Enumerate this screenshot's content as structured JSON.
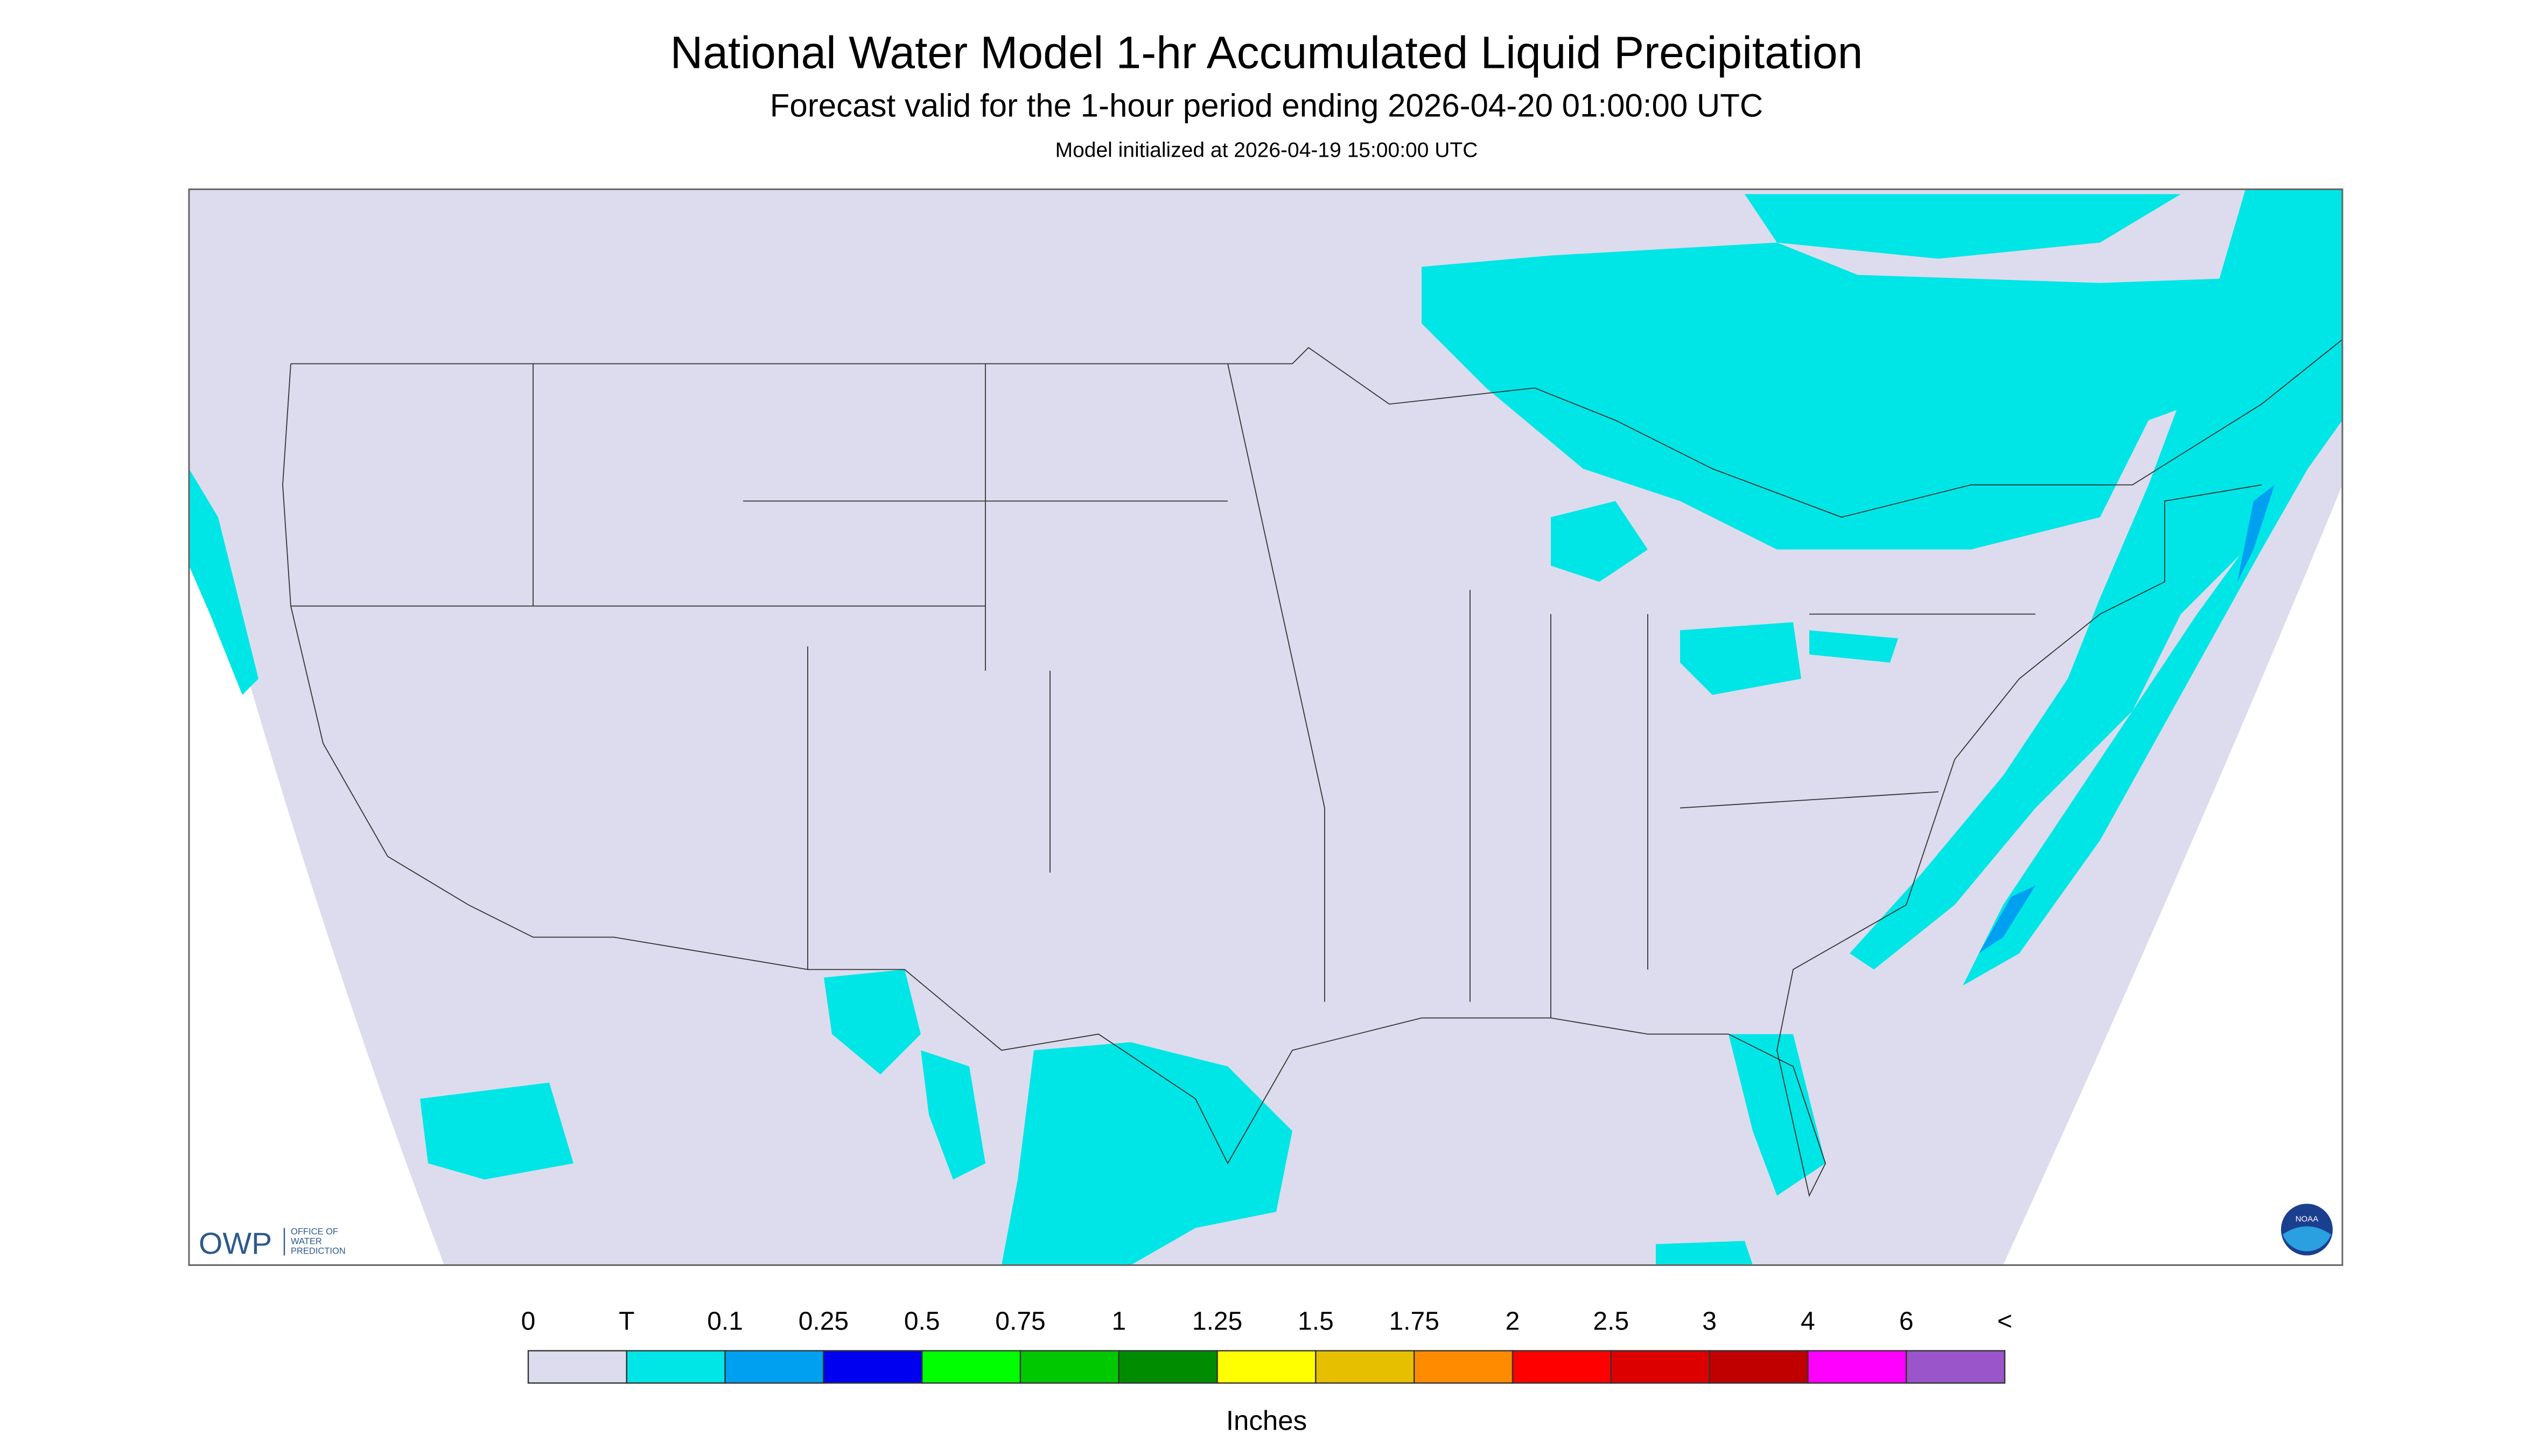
{
  "header": {
    "title": "National Water Model 1-hr Accumulated Liquid Precipitation",
    "subtitle": "Forecast valid for the 1-hour period ending 2026-04-20 01:00:00 UTC",
    "note": "Model initialized at 2026-04-19 15:00:00 UTC"
  },
  "legend": {
    "labels": [
      "0",
      "T",
      "0.1",
      "0.25",
      "0.5",
      "0.75",
      "1",
      "1.25",
      "1.5",
      "1.75",
      "2",
      "2.5",
      "3",
      "4",
      "6",
      "<"
    ],
    "colors": [
      "#dcdcee",
      "#00e6e6",
      "#00a0f0",
      "#0000f0",
      "#00ff00",
      "#00c800",
      "#008c00",
      "#ffff00",
      "#e6c000",
      "#ff8c00",
      "#ff0000",
      "#dd0000",
      "#c00000",
      "#ff00ff",
      "#9955c9"
    ],
    "unit": "Inches"
  },
  "logos": {
    "owp": "OWP",
    "owp_text": [
      "OFFICE OF",
      "WATER",
      "PREDICTION"
    ],
    "noaa": "NOAA"
  }
}
